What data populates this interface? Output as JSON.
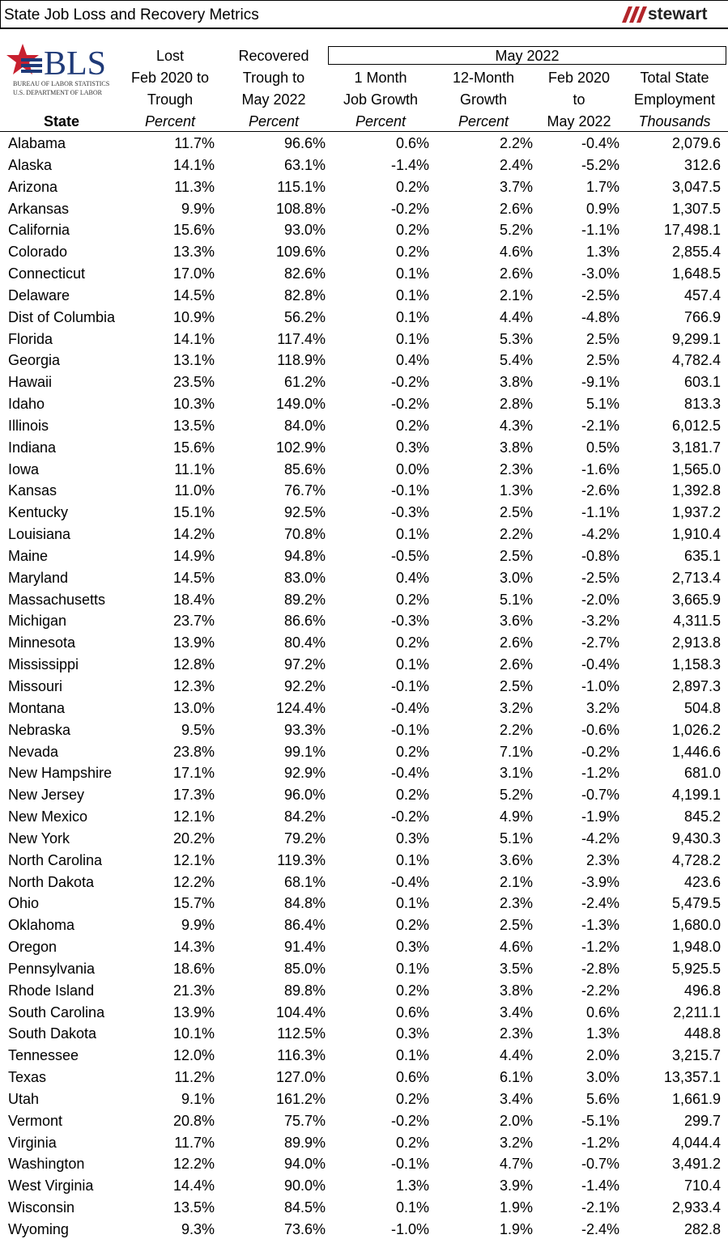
{
  "header": {
    "title": "State Job Loss and Recovery Metrics",
    "brand": "stewart"
  },
  "logo": {
    "name": "BLS",
    "line1": "BUREAU OF LABOR STATISTICS",
    "line2": "U.S. DEPARTMENT OF LABOR"
  },
  "table": {
    "group": "May 2022",
    "columns": [
      {
        "lines": [
          "State"
        ]
      },
      {
        "lines": [
          "Lost",
          "Feb 2020 to",
          "Trough"
        ],
        "unit": "Percent"
      },
      {
        "lines": [
          "Recovered",
          "Trough to",
          "May 2022"
        ],
        "unit": "Percent"
      },
      {
        "lines": [
          "1 Month",
          "Job Growth"
        ],
        "unit": "Percent"
      },
      {
        "lines": [
          "12-Month",
          "Growth"
        ],
        "unit": "Percent"
      },
      {
        "lines": [
          "Feb 2020",
          "to",
          "May 2022"
        ]
      },
      {
        "lines": [
          "Total State",
          "Employment"
        ],
        "unit": "Thousands"
      }
    ],
    "rows": [
      [
        "Alabama",
        "11.7%",
        "96.6%",
        "0.6%",
        "2.2%",
        "-0.4%",
        "2,079.6"
      ],
      [
        "Alaska",
        "14.1%",
        "63.1%",
        "-1.4%",
        "2.4%",
        "-5.2%",
        "312.6"
      ],
      [
        "Arizona",
        "11.3%",
        "115.1%",
        "0.2%",
        "3.7%",
        "1.7%",
        "3,047.5"
      ],
      [
        "Arkansas",
        "9.9%",
        "108.8%",
        "-0.2%",
        "2.6%",
        "0.9%",
        "1,307.5"
      ],
      [
        "California",
        "15.6%",
        "93.0%",
        "0.2%",
        "5.2%",
        "-1.1%",
        "17,498.1"
      ],
      [
        "Colorado",
        "13.3%",
        "109.6%",
        "0.2%",
        "4.6%",
        "1.3%",
        "2,855.4"
      ],
      [
        "Connecticut",
        "17.0%",
        "82.6%",
        "0.1%",
        "2.6%",
        "-3.0%",
        "1,648.5"
      ],
      [
        "Delaware",
        "14.5%",
        "82.8%",
        "0.1%",
        "2.1%",
        "-2.5%",
        "457.4"
      ],
      [
        "Dist of Columbia",
        "10.9%",
        "56.2%",
        "0.1%",
        "4.4%",
        "-4.8%",
        "766.9"
      ],
      [
        "Florida",
        "14.1%",
        "117.4%",
        "0.1%",
        "5.3%",
        "2.5%",
        "9,299.1"
      ],
      [
        "Georgia",
        "13.1%",
        "118.9%",
        "0.4%",
        "5.4%",
        "2.5%",
        "4,782.4"
      ],
      [
        "Hawaii",
        "23.5%",
        "61.2%",
        "-0.2%",
        "3.8%",
        "-9.1%",
        "603.1"
      ],
      [
        "Idaho",
        "10.3%",
        "149.0%",
        "-0.2%",
        "2.8%",
        "5.1%",
        "813.3"
      ],
      [
        "Illinois",
        "13.5%",
        "84.0%",
        "0.2%",
        "4.3%",
        "-2.1%",
        "6,012.5"
      ],
      [
        "Indiana",
        "15.6%",
        "102.9%",
        "0.3%",
        "3.8%",
        "0.5%",
        "3,181.7"
      ],
      [
        "Iowa",
        "11.1%",
        "85.6%",
        "0.0%",
        "2.3%",
        "-1.6%",
        "1,565.0"
      ],
      [
        "Kansas",
        "11.0%",
        "76.7%",
        "-0.1%",
        "1.3%",
        "-2.6%",
        "1,392.8"
      ],
      [
        "Kentucky",
        "15.1%",
        "92.5%",
        "-0.3%",
        "2.5%",
        "-1.1%",
        "1,937.2"
      ],
      [
        "Louisiana",
        "14.2%",
        "70.8%",
        "0.1%",
        "2.2%",
        "-4.2%",
        "1,910.4"
      ],
      [
        "Maine",
        "14.9%",
        "94.8%",
        "-0.5%",
        "2.5%",
        "-0.8%",
        "635.1"
      ],
      [
        "Maryland",
        "14.5%",
        "83.0%",
        "0.4%",
        "3.0%",
        "-2.5%",
        "2,713.4"
      ],
      [
        "Massachusetts",
        "18.4%",
        "89.2%",
        "0.2%",
        "5.1%",
        "-2.0%",
        "3,665.9"
      ],
      [
        "Michigan",
        "23.7%",
        "86.6%",
        "-0.3%",
        "3.6%",
        "-3.2%",
        "4,311.5"
      ],
      [
        "Minnesota",
        "13.9%",
        "80.4%",
        "0.2%",
        "2.6%",
        "-2.7%",
        "2,913.8"
      ],
      [
        "Mississippi",
        "12.8%",
        "97.2%",
        "0.1%",
        "2.6%",
        "-0.4%",
        "1,158.3"
      ],
      [
        "Missouri",
        "12.3%",
        "92.2%",
        "-0.1%",
        "2.5%",
        "-1.0%",
        "2,897.3"
      ],
      [
        "Montana",
        "13.0%",
        "124.4%",
        "-0.4%",
        "3.2%",
        "3.2%",
        "504.8"
      ],
      [
        "Nebraska",
        "9.5%",
        "93.3%",
        "-0.1%",
        "2.2%",
        "-0.6%",
        "1,026.2"
      ],
      [
        "Nevada",
        "23.8%",
        "99.1%",
        "0.2%",
        "7.1%",
        "-0.2%",
        "1,446.6"
      ],
      [
        "New Hampshire",
        "17.1%",
        "92.9%",
        "-0.4%",
        "3.1%",
        "-1.2%",
        "681.0"
      ],
      [
        "New Jersey",
        "17.3%",
        "96.0%",
        "0.2%",
        "5.2%",
        "-0.7%",
        "4,199.1"
      ],
      [
        "New Mexico",
        "12.1%",
        "84.2%",
        "-0.2%",
        "4.9%",
        "-1.9%",
        "845.2"
      ],
      [
        "New York",
        "20.2%",
        "79.2%",
        "0.3%",
        "5.1%",
        "-4.2%",
        "9,430.3"
      ],
      [
        "North Carolina",
        "12.1%",
        "119.3%",
        "0.1%",
        "3.6%",
        "2.3%",
        "4,728.2"
      ],
      [
        "North Dakota",
        "12.2%",
        "68.1%",
        "-0.4%",
        "2.1%",
        "-3.9%",
        "423.6"
      ],
      [
        "Ohio",
        "15.7%",
        "84.8%",
        "0.1%",
        "2.3%",
        "-2.4%",
        "5,479.5"
      ],
      [
        "Oklahoma",
        "9.9%",
        "86.4%",
        "0.2%",
        "2.5%",
        "-1.3%",
        "1,680.0"
      ],
      [
        "Oregon",
        "14.3%",
        "91.4%",
        "0.3%",
        "4.6%",
        "-1.2%",
        "1,948.0"
      ],
      [
        "Pennsylvania",
        "18.6%",
        "85.0%",
        "0.1%",
        "3.5%",
        "-2.8%",
        "5,925.5"
      ],
      [
        "Rhode Island",
        "21.3%",
        "89.8%",
        "0.2%",
        "3.8%",
        "-2.2%",
        "496.8"
      ],
      [
        "South Carolina",
        "13.9%",
        "104.4%",
        "0.6%",
        "3.4%",
        "0.6%",
        "2,211.1"
      ],
      [
        "South Dakota",
        "10.1%",
        "112.5%",
        "0.3%",
        "2.3%",
        "1.3%",
        "448.8"
      ],
      [
        "Tennessee",
        "12.0%",
        "116.3%",
        "0.1%",
        "4.4%",
        "2.0%",
        "3,215.7"
      ],
      [
        "Texas",
        "11.2%",
        "127.0%",
        "0.6%",
        "6.1%",
        "3.0%",
        "13,357.1"
      ],
      [
        "Utah",
        "9.1%",
        "161.2%",
        "0.2%",
        "3.4%",
        "5.6%",
        "1,661.9"
      ],
      [
        "Vermont",
        "20.8%",
        "75.7%",
        "-0.2%",
        "2.0%",
        "-5.1%",
        "299.7"
      ],
      [
        "Virginia",
        "11.7%",
        "89.9%",
        "0.2%",
        "3.2%",
        "-1.2%",
        "4,044.4"
      ],
      [
        "Washington",
        "12.2%",
        "94.0%",
        "-0.1%",
        "4.7%",
        "-0.7%",
        "3,491.2"
      ],
      [
        "West Virginia",
        "14.4%",
        "90.0%",
        "1.3%",
        "3.9%",
        "-1.4%",
        "710.4"
      ],
      [
        "Wisconsin",
        "13.5%",
        "84.5%",
        "0.1%",
        "1.9%",
        "-2.1%",
        "2,933.4"
      ],
      [
        "Wyoming",
        "9.3%",
        "73.6%",
        "-1.0%",
        "1.9%",
        "-2.4%",
        "282.8"
      ]
    ]
  }
}
